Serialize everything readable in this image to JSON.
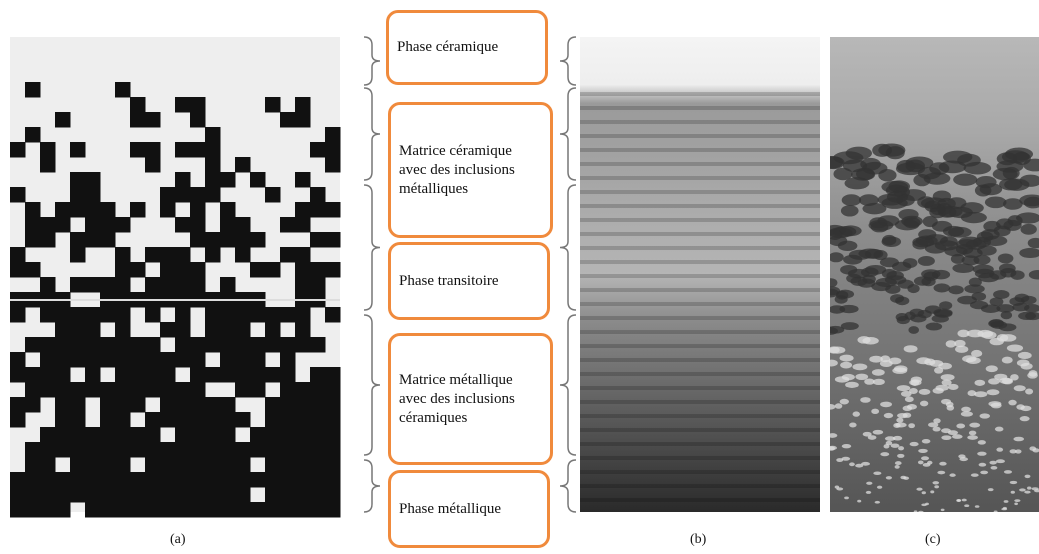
{
  "labels": [
    "Phase céramique",
    "Matrice céramique avec des inclusions métalliques",
    "Phase transitoire",
    "Matrice métallique avec des inclusions céramiques",
    "Phase métallique"
  ],
  "captions": [
    "(a)",
    "(b)",
    "(c)"
  ]
}
